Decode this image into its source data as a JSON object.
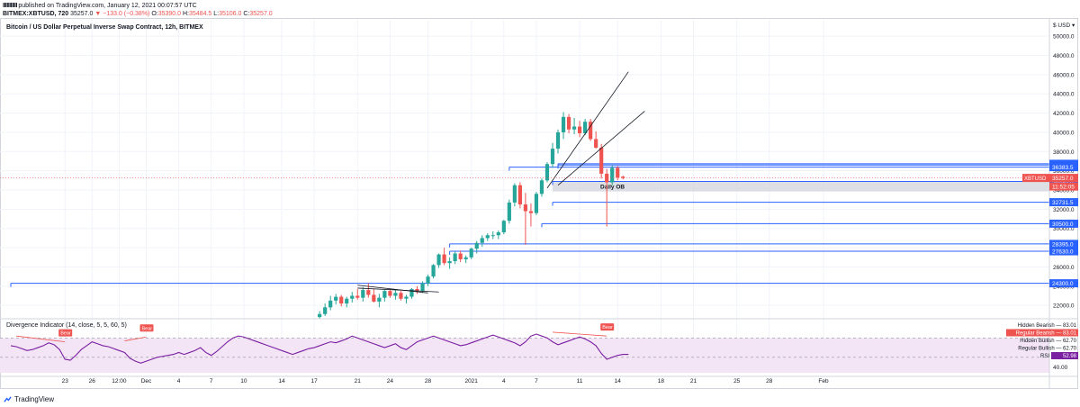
{
  "header": {
    "line1": "published on TradingView.com, January 12, 2021 00:07:57 UTC",
    "symbol": "BITMEX:XBTUSD, 720",
    "price": "35257.0",
    "change": "−133.0 (−0.38%)",
    "o_label": "O:",
    "o_value": "35390.0",
    "h_label": "H:",
    "h_value": "35484.5",
    "l_label": "L:",
    "l_value": "35106.0",
    "c_label": "C:",
    "c_value": "35257.0"
  },
  "footer": {
    "brand": "TradingView",
    "logo_icon": "tradingview-logo-icon"
  },
  "colors": {
    "up": "#26a69a",
    "down": "#ef5350",
    "level": "#2962ff",
    "rsi": "#7b1fa2",
    "trendline": "#131722",
    "band": "#f3e5f5"
  },
  "chart_data": [
    {
      "type": "candlestick",
      "title": "Bitcoin / US Dollar Perpetual Inverse Swap Contract, 12h, BITMEX",
      "y_scale": "linear",
      "grid": true,
      "y_ticks": [
        "50000.0",
        "48000.0",
        "46000.0",
        "44000.0",
        "42000.0",
        "40000.0",
        "38000.0",
        "36000.0",
        "34000.0",
        "32000.0",
        "30000.0",
        "28000.0",
        "26000.0",
        "24000.0",
        "22000.0"
      ],
      "y_tick_values": [
        50000,
        48000,
        46000,
        44000,
        42000,
        40000,
        38000,
        36000,
        34000,
        32000,
        30000,
        28000,
        26000,
        24000,
        22000
      ],
      "y_axis_top_label": "$ USD ▾",
      "ylim": [
        20800,
        51700
      ],
      "x_ticks": [
        "23",
        "26",
        "12:00",
        "Dec",
        "4",
        "7",
        "10",
        "14",
        "17",
        "21",
        "24",
        "28",
        "2021",
        "4",
        "7",
        "11",
        "14",
        "18",
        "21",
        "25",
        "28",
        "Feb"
      ],
      "x_tick_index": [
        10,
        15,
        20,
        25,
        31,
        37,
        43,
        50,
        56,
        64,
        70,
        77,
        85,
        91,
        97,
        105,
        112,
        120,
        126,
        134,
        140,
        150
      ],
      "candles": [
        [
          20790,
          21400,
          20600,
          21100
        ],
        [
          21100,
          22200,
          20900,
          21800
        ],
        [
          21800,
          23000,
          21500,
          22500
        ],
        [
          22500,
          23200,
          22100,
          22900
        ],
        [
          22900,
          23100,
          21900,
          22200
        ],
        [
          22200,
          22900,
          21800,
          22700
        ],
        [
          22700,
          23400,
          22300,
          23000
        ],
        [
          23000,
          23700,
          22600,
          22800
        ],
        [
          22800,
          23900,
          22400,
          23600
        ],
        [
          23600,
          24300,
          22800,
          23100
        ],
        [
          23100,
          23700,
          22300,
          22400
        ],
        [
          22400,
          23200,
          21800,
          22800
        ],
        [
          22800,
          23600,
          22400,
          23500
        ],
        [
          23500,
          23700,
          22800,
          23000
        ],
        [
          23000,
          23600,
          22600,
          23300
        ],
        [
          23300,
          23500,
          22500,
          22700
        ],
        [
          22700,
          23100,
          22200,
          22900
        ],
        [
          22900,
          23800,
          22700,
          23700
        ],
        [
          23700,
          24000,
          23200,
          23500
        ],
        [
          23500,
          24500,
          23300,
          24300
        ],
        [
          24300,
          25200,
          24000,
          25000
        ],
        [
          25000,
          26300,
          24800,
          26200
        ],
        [
          26200,
          27400,
          25900,
          27300
        ],
        [
          27300,
          28000,
          26200,
          26400
        ],
        [
          26400,
          27000,
          25800,
          26600
        ],
        [
          26600,
          27600,
          26300,
          27400
        ],
        [
          27400,
          27700,
          26500,
          26800
        ],
        [
          26800,
          27200,
          26400,
          27000
        ],
        [
          27000,
          28000,
          26800,
          27900
        ],
        [
          27900,
          28700,
          27400,
          28500
        ],
        [
          28500,
          29300,
          28100,
          29000
        ],
        [
          29000,
          29500,
          28700,
          29300
        ],
        [
          29300,
          29700,
          28900,
          29300
        ],
        [
          29300,
          29800,
          28900,
          29600
        ],
        [
          29600,
          30900,
          29400,
          30800
        ],
        [
          30800,
          33000,
          30500,
          32700
        ],
        [
          32700,
          34700,
          32300,
          34500
        ],
        [
          34500,
          34800,
          32100,
          32500
        ],
        [
          32500,
          33700,
          28300,
          31800
        ],
        [
          31800,
          32600,
          30200,
          31600
        ],
        [
          31600,
          33800,
          31400,
          33600
        ],
        [
          33600,
          35200,
          33300,
          35000
        ],
        [
          35000,
          36900,
          34800,
          36700
        ],
        [
          36700,
          38900,
          36300,
          38300
        ],
        [
          38300,
          40300,
          37800,
          40000
        ],
        [
          40000,
          42100,
          39300,
          41600
        ],
        [
          41600,
          41900,
          39900,
          40300
        ],
        [
          40300,
          41500,
          39800,
          40600
        ],
        [
          40600,
          41200,
          39500,
          39900
        ],
        [
          39900,
          41400,
          39700,
          41100
        ],
        [
          41100,
          41400,
          39100,
          39300
        ],
        [
          39300,
          40100,
          38300,
          38400
        ],
        [
          38400,
          38800,
          35200,
          35700
        ],
        [
          35700,
          36200,
          30200,
          34800
        ],
        [
          34800,
          36600,
          34500,
          36300
        ],
        [
          36300,
          36500,
          35000,
          35300
        ],
        [
          35390,
          35484.5,
          35106,
          35257
        ]
      ],
      "candle_x_index": [
        57,
        58,
        59,
        60,
        61,
        62,
        63,
        64,
        65,
        66,
        67,
        68,
        69,
        70,
        71,
        72,
        73,
        74,
        75,
        76,
        77,
        78,
        79,
        80,
        81,
        82,
        83,
        84,
        85,
        86,
        87,
        88,
        89,
        90,
        91,
        92,
        93,
        94,
        95,
        96,
        97,
        98,
        99,
        100,
        101,
        102,
        103,
        104,
        105,
        106,
        107,
        108,
        109,
        110,
        111,
        112,
        113
      ],
      "levels": [
        {
          "value": 36725.0,
          "label": "36725.0",
          "from_index": 101
        },
        {
          "value": 36600.0,
          "label": "36600.0",
          "from_index": 101
        },
        {
          "value": 36383.5,
          "label": "36383.5",
          "from_index": 92
        },
        {
          "value": 34896.0,
          "label": "34896.0",
          "from_index": 100
        },
        {
          "value": 32731.5,
          "label": "32731.5",
          "from_index": 100
        },
        {
          "value": 30500.0,
          "label": "30500.0",
          "from_index": 98
        },
        {
          "value": 28395.0,
          "label": "28395.0",
          "from_index": 81
        },
        {
          "value": 27630.0,
          "label": "27630.0",
          "from_index": 81
        },
        {
          "value": 24300.0,
          "label": "24300.0",
          "from_index": 0
        }
      ],
      "zones": [
        {
          "label": "Daily OB",
          "from_index": 100,
          "y_top": 34896.0,
          "y_bottom": 33850
        }
      ],
      "price_label": {
        "symbol": "XBTUSD",
        "value": "35257.0",
        "countdown": "11:52:05"
      },
      "trendlines": [
        {
          "x": [
            99,
            114
          ],
          "y": [
            34200,
            46300
          ]
        },
        {
          "x": [
            101,
            117
          ],
          "y": [
            34500,
            42200
          ]
        },
        {
          "x": [
            64,
            77
          ],
          "y": [
            24100,
            23300
          ]
        },
        {
          "x": [
            64,
            79
          ],
          "y": [
            23800,
            23400
          ]
        }
      ]
    },
    {
      "type": "line",
      "title": "Divergence Indicator (14, close, 5, 5, 60, 5)",
      "ylim": [
        34,
        88
      ],
      "y_ticks": [
        "40.00"
      ],
      "y_tick_values": [
        40
      ],
      "band": [
        30,
        70
      ],
      "series_color": "#7b1fa2",
      "values": [
        62,
        61,
        59,
        57,
        58,
        60,
        62,
        65,
        63,
        58,
        48,
        47,
        52,
        58,
        62,
        66,
        64,
        62,
        61,
        59,
        57,
        55,
        49,
        46,
        44,
        46,
        48,
        50,
        51,
        52,
        53,
        55,
        53,
        55,
        57,
        60,
        55,
        52,
        56,
        61,
        66,
        70,
        72,
        71,
        69,
        67,
        65,
        63,
        61,
        59,
        57,
        55,
        53,
        55,
        57,
        59,
        60,
        62,
        64,
        66,
        65,
        67,
        69,
        72,
        70,
        68,
        66,
        64,
        62,
        60,
        62,
        64,
        60,
        58,
        62,
        66,
        68,
        70,
        72,
        70,
        68,
        66,
        64,
        62,
        63,
        65,
        67,
        69,
        71,
        73,
        71,
        69,
        67,
        65,
        62,
        66,
        72,
        74,
        72,
        70,
        66,
        63,
        65,
        67,
        69,
        71,
        69,
        66,
        62,
        54,
        48,
        50,
        52,
        53,
        53
      ],
      "divergences": [
        {
          "kind": "Bear",
          "x": [
            1,
            10
          ],
          "y": [
            72,
            66
          ]
        },
        {
          "kind": "Bear",
          "x": [
            21,
            25
          ],
          "y": [
            67,
            71
          ]
        },
        {
          "kind": "Bear",
          "x": [
            100,
            110
          ],
          "y": [
            76,
            72
          ]
        }
      ],
      "value_labels": [
        {
          "text": "Hidden Bearish",
          "value": "83.01",
          "style": "plain"
        },
        {
          "text": "Regular Bearish",
          "value": "83.01",
          "style": "red"
        },
        {
          "text": "Hidden Bullish",
          "value": "62.70",
          "style": "plain"
        },
        {
          "text": "Regular Bullish",
          "value": "62.70",
          "style": "plain"
        },
        {
          "text": "RSI",
          "value": "52.98",
          "style": "purple"
        }
      ]
    }
  ]
}
